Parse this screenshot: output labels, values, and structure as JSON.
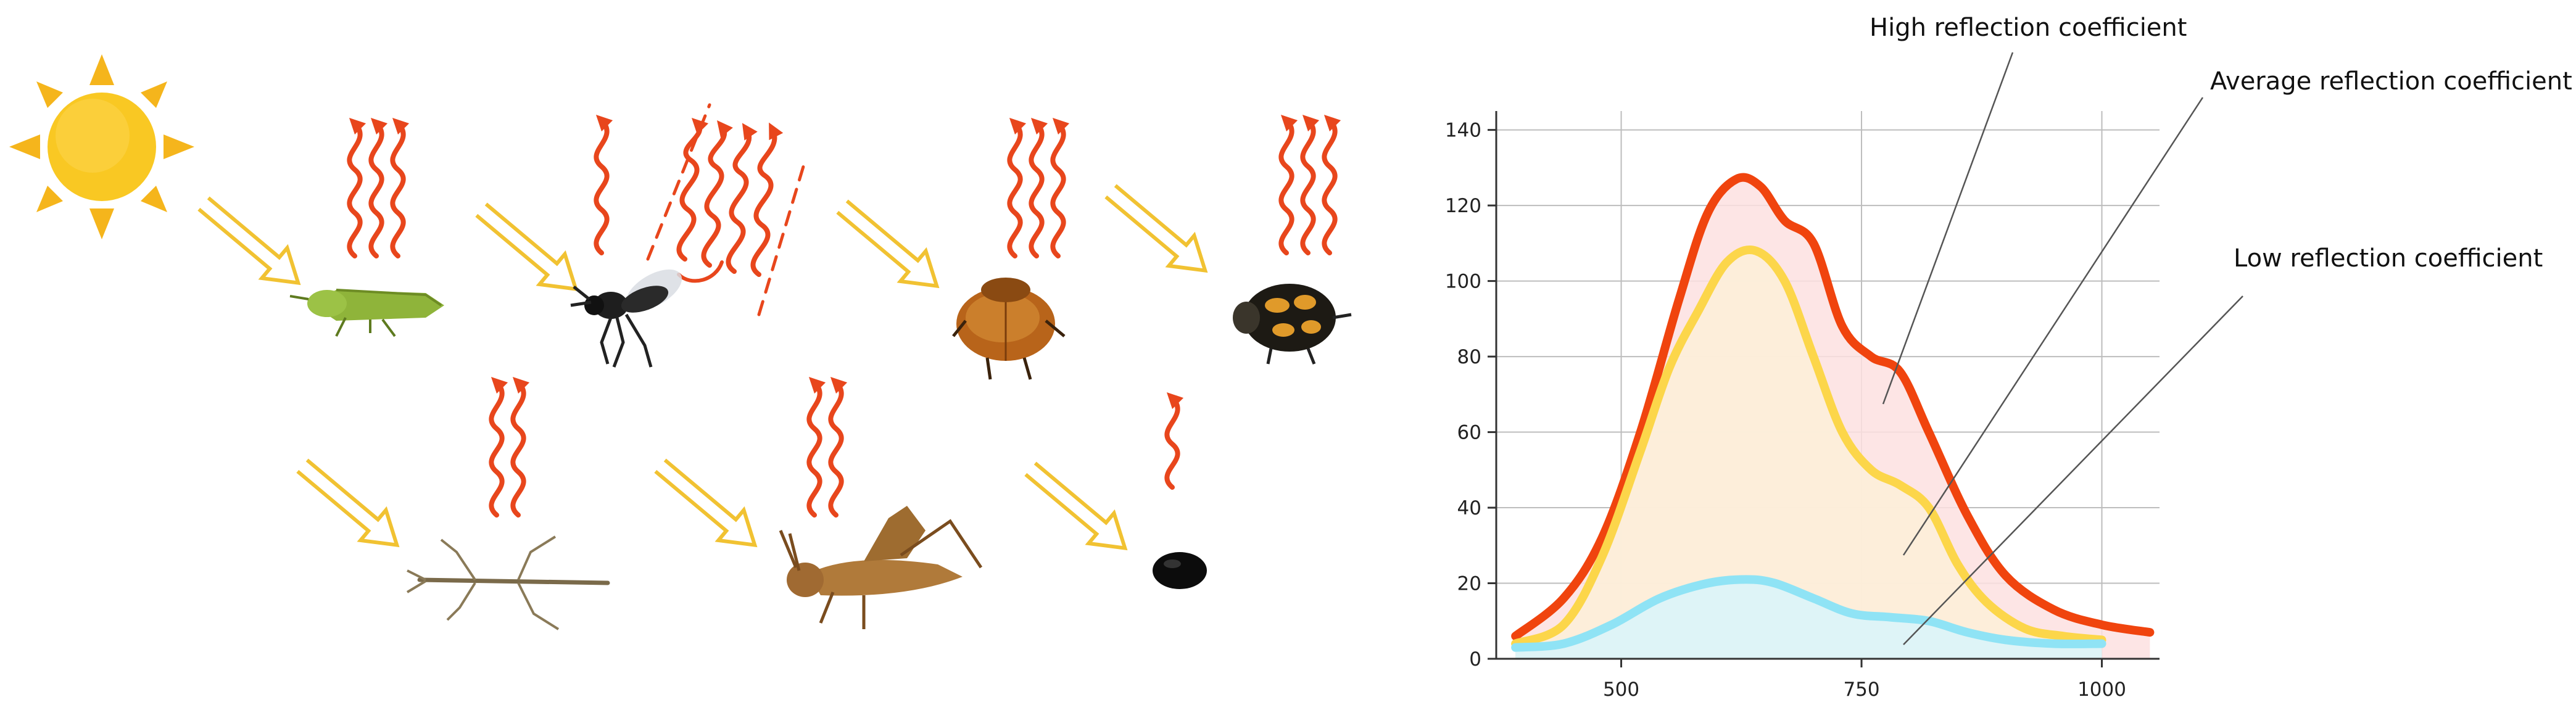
{
  "colors": {
    "sun": "#f8c21f",
    "sun_ray": "#f5a623",
    "heat": "#e8461c",
    "light_arrow": "#f1c232",
    "high": "#f0440e",
    "average": "#fcd64a",
    "low": "#8fe3f5",
    "high_fill": "#fde1e1",
    "average_fill": "#fdf0d8",
    "low_fill": "#d8f4fb",
    "grid": "#bdbdbd",
    "leader": "#555555"
  },
  "illustration": {
    "sun": {
      "icon": "sun-icon"
    },
    "insects": [
      {
        "id": "leafhopper",
        "icon": "leafhopper-icon",
        "heat_waves": 3
      },
      {
        "id": "wasp",
        "icon": "wasp-icon",
        "heat_waves": 1,
        "reflected_heat_waves": 4
      },
      {
        "id": "june-beetle",
        "icon": "june-beetle-icon",
        "heat_waves": 3
      },
      {
        "id": "spotted-beetle",
        "icon": "spotted-beetle-icon",
        "heat_waves": 3
      },
      {
        "id": "stick-insect",
        "icon": "stick-insect-icon",
        "heat_waves": 2
      },
      {
        "id": "grasshopper",
        "icon": "grasshopper-icon",
        "heat_waves": 2
      },
      {
        "id": "black-seed",
        "icon": "black-seed-icon",
        "heat_waves": 1
      }
    ]
  },
  "chart_data": {
    "type": "area",
    "title": "",
    "xlabel": "",
    "ylabel": "",
    "xlim": [
      370,
      1060
    ],
    "ylim": [
      0,
      145
    ],
    "x_ticks": [
      500,
      750,
      1000
    ],
    "y_ticks": [
      0,
      20,
      40,
      60,
      80,
      100,
      120,
      140
    ],
    "x_tick_labels": [
      "500",
      "750",
      "1000"
    ],
    "y_tick_labels": [
      "0",
      "20",
      "40",
      "60",
      "80",
      "100",
      "120",
      "140"
    ],
    "grid": true,
    "series": [
      {
        "name": "High reflection coefficient",
        "key": "high",
        "x": [
          390,
          440,
          480,
          520,
          560,
          590,
          620,
          645,
          670,
          700,
          730,
          760,
          790,
          820,
          860,
          900,
          950,
          1000,
          1050
        ],
        "y": [
          6,
          16,
          32,
          60,
          95,
          118,
          127,
          125,
          116,
          110,
          88,
          80,
          76,
          60,
          38,
          22,
          13,
          9,
          7
        ]
      },
      {
        "name": "Average reflection coefficient",
        "key": "average",
        "x": [
          390,
          440,
          480,
          520,
          550,
          580,
          610,
          640,
          670,
          700,
          730,
          760,
          790,
          820,
          850,
          880,
          920,
          960,
          1000
        ],
        "y": [
          4,
          9,
          27,
          55,
          77,
          92,
          105,
          108,
          100,
          80,
          60,
          50,
          46,
          40,
          25,
          15,
          8,
          6,
          5
        ]
      },
      {
        "name": "Low reflection coefficient",
        "key": "low",
        "x": [
          390,
          440,
          490,
          540,
          590,
          630,
          660,
          700,
          740,
          780,
          820,
          860,
          900,
          950,
          1000
        ],
        "y": [
          3,
          4,
          9,
          16,
          20,
          21,
          20,
          16,
          12,
          11,
          10,
          7,
          5,
          4,
          4
        ]
      }
    ],
    "annotations": {
      "high_label": "High reflection coefficient",
      "average_label": "Average reflection coefficient",
      "low_label": "Low reflection coefficient"
    }
  }
}
